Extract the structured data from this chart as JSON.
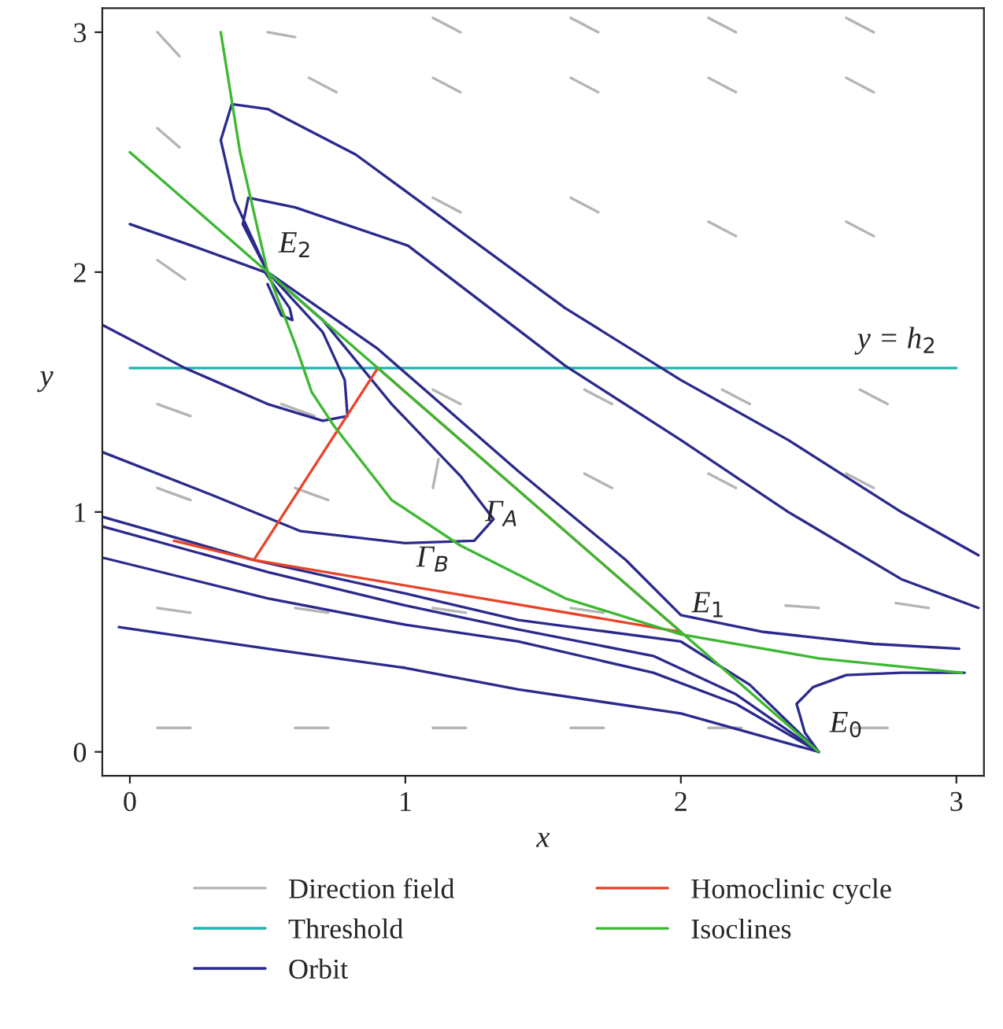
{
  "chart_data": {
    "type": "line",
    "xlabel": "x",
    "ylabel": "y",
    "xlim": [
      -0.1,
      3.1
    ],
    "ylim": [
      -0.1,
      3.1
    ],
    "xticks": [
      0,
      1,
      2,
      3
    ],
    "yticks": [
      0,
      1,
      2,
      3
    ],
    "grid": false,
    "legend": "bottom",
    "marker": "none",
    "line_style": "solid",
    "series": [
      {
        "name": "Direction field",
        "color": "#b4b4b4",
        "x": [
          0.1,
          0.22
        ],
        "values": [
          0.1,
          0.1
        ]
      },
      {
        "color": "#b4b4b4",
        "x": [
          0.6,
          0.72
        ],
        "values": [
          0.1,
          0.1
        ]
      },
      {
        "color": "#b4b4b4",
        "x": [
          1.1,
          1.22
        ],
        "values": [
          0.1,
          0.1
        ]
      },
      {
        "color": "#b4b4b4",
        "x": [
          1.6,
          1.72
        ],
        "values": [
          0.1,
          0.1
        ]
      },
      {
        "color": "#b4b4b4",
        "x": [
          2.1,
          2.22
        ],
        "values": [
          0.1,
          0.1
        ]
      },
      {
        "color": "#b4b4b4",
        "x": [
          2.75,
          2.63
        ],
        "values": [
          0.1,
          0.1
        ]
      },
      {
        "color": "#b4b4b4",
        "x": [
          0.1,
          0.22
        ],
        "values": [
          0.6,
          0.58
        ]
      },
      {
        "color": "#b4b4b4",
        "x": [
          0.6,
          0.72
        ],
        "values": [
          0.6,
          0.58
        ]
      },
      {
        "color": "#b4b4b4",
        "x": [
          1.1,
          1.22
        ],
        "values": [
          0.6,
          0.58
        ]
      },
      {
        "color": "#b4b4b4",
        "x": [
          1.6,
          1.72
        ],
        "values": [
          0.6,
          0.58
        ]
      },
      {
        "color": "#b4b4b4",
        "x": [
          2.5,
          2.38
        ],
        "values": [
          0.6,
          0.61
        ]
      },
      {
        "color": "#b4b4b4",
        "x": [
          2.9,
          2.78
        ],
        "values": [
          0.6,
          0.62
        ]
      },
      {
        "color": "#b4b4b4",
        "x": [
          0.1,
          0.22
        ],
        "values": [
          1.1,
          1.05
        ]
      },
      {
        "color": "#b4b4b4",
        "x": [
          0.6,
          0.72
        ],
        "values": [
          1.1,
          1.05
        ]
      },
      {
        "color": "#b4b4b4",
        "x": [
          1.1,
          1.12
        ],
        "values": [
          1.1,
          1.22
        ]
      },
      {
        "color": "#b4b4b4",
        "x": [
          1.75,
          1.65
        ],
        "values": [
          1.1,
          1.16
        ]
      },
      {
        "color": "#b4b4b4",
        "x": [
          2.2,
          2.1
        ],
        "values": [
          1.1,
          1.16
        ]
      },
      {
        "color": "#b4b4b4",
        "x": [
          2.7,
          2.6
        ],
        "values": [
          1.1,
          1.16
        ]
      },
      {
        "color": "#b4b4b4",
        "x": [
          0.1,
          0.22
        ],
        "values": [
          1.45,
          1.4
        ]
      },
      {
        "color": "#b4b4b4",
        "x": [
          0.55,
          0.67
        ],
        "values": [
          1.45,
          1.4
        ]
      },
      {
        "color": "#b4b4b4",
        "x": [
          1.2,
          1.1
        ],
        "values": [
          1.45,
          1.51
        ]
      },
      {
        "color": "#b4b4b4",
        "x": [
          1.75,
          1.65
        ],
        "values": [
          1.45,
          1.51
        ]
      },
      {
        "color": "#b4b4b4",
        "x": [
          2.25,
          2.15
        ],
        "values": [
          1.45,
          1.51
        ]
      },
      {
        "color": "#b4b4b4",
        "x": [
          2.75,
          2.65
        ],
        "values": [
          1.45,
          1.51
        ]
      },
      {
        "color": "#b4b4b4",
        "x": [
          0.1,
          0.2
        ],
        "values": [
          2.05,
          1.97
        ]
      },
      {
        "color": "#b4b4b4",
        "x": [
          1.2,
          1.1
        ],
        "values": [
          2.25,
          2.31
        ]
      },
      {
        "color": "#b4b4b4",
        "x": [
          1.7,
          1.6
        ],
        "values": [
          2.25,
          2.31
        ]
      },
      {
        "color": "#b4b4b4",
        "x": [
          2.2,
          2.1
        ],
        "values": [
          2.15,
          2.21
        ]
      },
      {
        "color": "#b4b4b4",
        "x": [
          2.7,
          2.6
        ],
        "values": [
          2.15,
          2.21
        ]
      },
      {
        "color": "#b4b4b4",
        "x": [
          0.1,
          0.18
        ],
        "values": [
          2.6,
          2.52
        ]
      },
      {
        "color": "#b4b4b4",
        "x": [
          0.75,
          0.65
        ],
        "values": [
          2.75,
          2.81
        ]
      },
      {
        "color": "#b4b4b4",
        "x": [
          1.2,
          1.1
        ],
        "values": [
          2.75,
          2.81
        ]
      },
      {
        "color": "#b4b4b4",
        "x": [
          1.7,
          1.6
        ],
        "values": [
          2.75,
          2.81
        ]
      },
      {
        "color": "#b4b4b4",
        "x": [
          2.2,
          2.1
        ],
        "values": [
          2.75,
          2.81
        ]
      },
      {
        "color": "#b4b4b4",
        "x": [
          2.7,
          2.6
        ],
        "values": [
          2.75,
          2.81
        ]
      },
      {
        "color": "#b4b4b4",
        "x": [
          0.1,
          0.18
        ],
        "values": [
          3.0,
          2.9
        ]
      },
      {
        "color": "#b4b4b4",
        "x": [
          0.6,
          0.5
        ],
        "values": [
          2.98,
          3.0
        ]
      },
      {
        "color": "#b4b4b4",
        "x": [
          1.2,
          1.1
        ],
        "values": [
          3.0,
          3.06
        ]
      },
      {
        "color": "#b4b4b4",
        "x": [
          1.7,
          1.6
        ],
        "values": [
          3.0,
          3.06
        ]
      },
      {
        "color": "#b4b4b4",
        "x": [
          2.2,
          2.1
        ],
        "values": [
          3.0,
          3.06
        ]
      },
      {
        "color": "#b4b4b4",
        "x": [
          2.7,
          2.6
        ],
        "values": [
          3.0,
          3.06
        ]
      },
      {
        "name": "Threshold",
        "color": "#1fb5b0",
        "x": [
          0,
          3
        ],
        "values": [
          1.6,
          1.6
        ]
      },
      {
        "name": "Orbit",
        "color": "#2b2a8c",
        "x": [
          3.08,
          2.8,
          2.39,
          2.0,
          1.58,
          0.82,
          0.5,
          0.37,
          0.33,
          0.38,
          0.5,
          0.41,
          0.43,
          0.6,
          1.01,
          1.58,
          2.0,
          2.39,
          2.8,
          3.08
        ],
        "values": [
          0.82,
          1.0,
          1.3,
          1.55,
          1.85,
          2.49,
          2.68,
          2.7,
          2.55,
          2.3,
          2.0,
          2.2,
          2.31,
          2.27,
          2.11,
          1.61,
          1.3,
          1.0,
          0.72,
          0.6
        ]
      },
      {
        "color": "#2b2a8c",
        "x": [
          0,
          0.25,
          0.49,
          0.58,
          0.59,
          0.55,
          0.5
        ],
        "values": [
          2.2,
          2.1,
          2.0,
          1.85,
          1.8,
          1.82,
          1.95
        ]
      },
      {
        "color": "#2b2a8c",
        "x": [
          -0.1,
          0.2,
          0.5,
          0.7,
          0.79,
          0.78,
          0.7,
          0.5
        ],
        "values": [
          1.78,
          1.6,
          1.45,
          1.38,
          1.4,
          1.55,
          1.75,
          2.0
        ]
      },
      {
        "color": "#2b2a8c",
        "x": [
          -0.1,
          0.3,
          0.62,
          1.0,
          1.25,
          1.32,
          1.2,
          0.95,
          0.7,
          0.5
        ],
        "values": [
          1.25,
          1.07,
          0.92,
          0.87,
          0.88,
          0.97,
          1.15,
          1.45,
          1.8,
          2.0
        ]
      },
      {
        "color": "#2b2a8c",
        "x": [
          0.5,
          0.9,
          1.41,
          1.8,
          2.0,
          2.3,
          2.7,
          3.01
        ],
        "values": [
          2.0,
          1.68,
          1.17,
          0.8,
          0.57,
          0.5,
          0.45,
          0.43
        ]
      },
      {
        "color": "#2b2a8c",
        "x": [
          -0.1,
          0.45,
          1.0,
          1.41,
          2.0,
          2.25,
          2.5
        ],
        "values": [
          0.98,
          0.8,
          0.66,
          0.55,
          0.46,
          0.28,
          0.0
        ]
      },
      {
        "color": "#2b2a8c",
        "x": [
          -0.1,
          0.5,
          1.0,
          1.41,
          1.9,
          2.2,
          2.5
        ],
        "values": [
          0.94,
          0.75,
          0.61,
          0.51,
          0.4,
          0.24,
          0.0
        ]
      },
      {
        "color": "#2b2a8c",
        "x": [
          -0.1,
          0.5,
          1.0,
          1.41,
          1.9,
          2.2,
          2.5
        ],
        "values": [
          0.81,
          0.64,
          0.53,
          0.46,
          0.33,
          0.2,
          0.0
        ]
      },
      {
        "color": "#2b2a8c",
        "x": [
          -0.04,
          0.5,
          1.0,
          1.41,
          2.0,
          2.5
        ],
        "values": [
          0.52,
          0.43,
          0.35,
          0.26,
          0.16,
          0.0
        ]
      },
      {
        "color": "#2b2a8c",
        "x": [
          3.03,
          2.8,
          2.6,
          2.48,
          2.42,
          2.45,
          2.5
        ],
        "values": [
          0.33,
          0.33,
          0.32,
          0.27,
          0.2,
          0.08,
          0.0
        ]
      },
      {
        "name": "Homoclinic cycle",
        "color": "#e8432a",
        "x": [
          0.16,
          0.45,
          2.0,
          0.9,
          0.45
        ],
        "values": [
          0.88,
          0.8,
          0.5,
          1.6,
          0.8
        ]
      },
      {
        "name": "Isoclines",
        "color": "#3cb832",
        "x": [
          0,
          0.5,
          0.9,
          2.0,
          2.5
        ],
        "values": [
          2.5,
          2.0,
          1.6,
          0.5,
          0.0
        ]
      },
      {
        "color": "#3cb832",
        "x": [
          0.33,
          0.4,
          0.5,
          0.6,
          0.66,
          0.74,
          0.95,
          1.2,
          1.58,
          2.0,
          2.5,
          3.02
        ],
        "values": [
          3.0,
          2.5,
          2.0,
          1.7,
          1.5,
          1.36,
          1.05,
          0.86,
          0.64,
          0.49,
          0.39,
          0.33
        ]
      }
    ],
    "annotations": [
      {
        "text": "E$_{2}$",
        "x": 0.5,
        "y": 2.0
      },
      {
        "text": "E$_{1}$",
        "x": 2.0,
        "y": 0.5
      },
      {
        "text": "E$_{0}$",
        "x": 2.5,
        "y": 0.0
      },
      {
        "text": "Γ$_{A}$",
        "x": 1.25,
        "y": 0.88
      },
      {
        "text": "Γ$_{B}$",
        "x": 1.0,
        "y": 0.69
      },
      {
        "text": "y = h$_{2}$",
        "x": 2.6,
        "y": 1.6
      }
    ]
  }
}
